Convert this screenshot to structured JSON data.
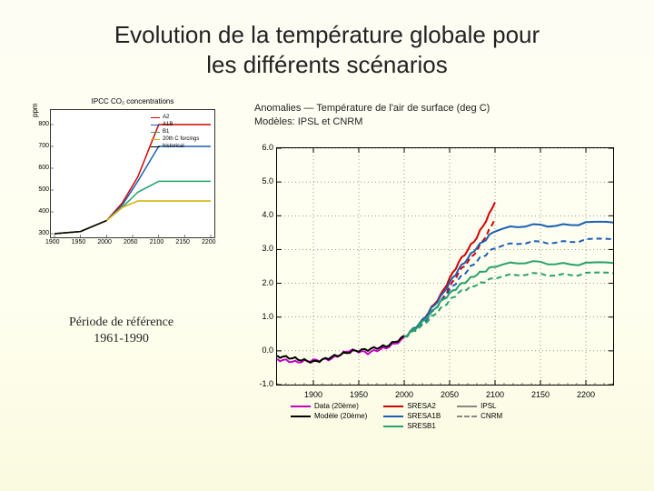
{
  "title_line1": "Evolution de la température globale pour",
  "title_line2": "les différents scénarios",
  "left_chart": {
    "title": "IPCC CO₂ concentrations",
    "ylabel": "ppm",
    "ylim": [
      300,
      850
    ],
    "yticks": [
      300,
      400,
      500,
      600,
      700,
      800
    ],
    "xlim": [
      1900,
      2200
    ],
    "xticks": [
      1900,
      1950,
      2000,
      2050,
      2100,
      2150,
      2200
    ],
    "series": [
      {
        "name": "A2",
        "color": "#d40000",
        "x": [
          1900,
          1950,
          2000,
          2030,
          2060,
          2100,
          2150,
          2200
        ],
        "y": [
          300,
          310,
          360,
          440,
          560,
          800,
          800,
          800
        ]
      },
      {
        "name": "A1B",
        "color": "#1a5fb4",
        "x": [
          1900,
          1950,
          2000,
          2030,
          2060,
          2100,
          2150,
          2200
        ],
        "y": [
          300,
          310,
          360,
          430,
          540,
          700,
          700,
          700
        ]
      },
      {
        "name": "B1",
        "color": "#26a269",
        "x": [
          1900,
          1950,
          2000,
          2030,
          2060,
          2100,
          2150,
          2200
        ],
        "y": [
          300,
          310,
          360,
          420,
          490,
          540,
          540,
          540
        ]
      },
      {
        "name": "20th C forcings",
        "color": "#d4b000",
        "x": [
          1900,
          1950,
          2000,
          2030,
          2060,
          2100,
          2150,
          2200
        ],
        "y": [
          300,
          310,
          360,
          420,
          450,
          450,
          450,
          450
        ]
      },
      {
        "name": "historical",
        "color": "#000000",
        "x": [
          1900,
          1950,
          2000
        ],
        "y": [
          300,
          310,
          360
        ]
      }
    ]
  },
  "reference_label_line1": "Période de référence",
  "reference_label_line2": "1961-1990",
  "main_chart": {
    "title1": "Anomalies — Température de l'air de surface (deg C)",
    "title2": "Modèles: IPSL et CNRM",
    "ylim": [
      -1.0,
      6.0
    ],
    "yticks": [
      -1.0,
      0.0,
      1.0,
      2.0,
      3.0,
      4.0,
      5.0,
      6.0
    ],
    "xlim": [
      1860,
      2230
    ],
    "xticks": [
      1900,
      1950,
      2000,
      2050,
      2100,
      2150,
      2200
    ],
    "legend_cols": [
      [
        {
          "label": "Data (20ème)",
          "color": "#c400c4",
          "dash": "solid"
        },
        {
          "label": "Modèle (20ème)",
          "color": "#000000",
          "dash": "solid"
        }
      ],
      [
        {
          "label": "SRESA2",
          "color": "#d40000",
          "dash": "solid"
        },
        {
          "label": "SRESA1B",
          "color": "#1a5fb4",
          "dash": "solid"
        },
        {
          "label": "SRESB1",
          "color": "#26a269",
          "dash": "solid"
        }
      ],
      [
        {
          "label": "IPSL",
          "color": "#888888",
          "dash": "solid"
        },
        {
          "label": "CNRM",
          "color": "#888888",
          "dash": "dashed"
        }
      ]
    ],
    "series": [
      {
        "id": "data20",
        "color": "#c400c4",
        "dash": "solid",
        "width": 2,
        "x": [
          1860,
          1880,
          1900,
          1920,
          1940,
          1960,
          1980,
          2000
        ],
        "y": [
          -0.3,
          -0.35,
          -0.25,
          -0.2,
          0.0,
          -0.1,
          0.1,
          0.4
        ]
      },
      {
        "id": "model20",
        "color": "#000000",
        "dash": "solid",
        "width": 2,
        "x": [
          1860,
          1880,
          1900,
          1920,
          1940,
          1960,
          1980,
          2000
        ],
        "y": [
          -0.2,
          -0.25,
          -0.3,
          -0.15,
          -0.05,
          0.0,
          0.15,
          0.45
        ]
      },
      {
        "id": "a2_ipsl",
        "color": "#d40000",
        "dash": "solid",
        "width": 2,
        "x": [
          2000,
          2020,
          2040,
          2060,
          2080,
          2100
        ],
        "y": [
          0.45,
          0.9,
          1.6,
          2.6,
          3.4,
          4.4
        ]
      },
      {
        "id": "a2_cnrm",
        "color": "#d40000",
        "dash": "dashed",
        "width": 2,
        "x": [
          2000,
          2020,
          2040,
          2060,
          2080,
          2100
        ],
        "y": [
          0.45,
          0.8,
          1.4,
          2.3,
          3.0,
          3.9
        ]
      },
      {
        "id": "a1b_ipsl",
        "color": "#1a5fb4",
        "dash": "solid",
        "width": 2,
        "x": [
          2000,
          2020,
          2040,
          2060,
          2080,
          2100,
          2150,
          2200,
          2230
        ],
        "y": [
          0.45,
          0.9,
          1.55,
          2.4,
          3.1,
          3.6,
          3.7,
          3.8,
          3.8
        ]
      },
      {
        "id": "a1b_cnrm",
        "color": "#1a5fb4",
        "dash": "dashed",
        "width": 2,
        "x": [
          2000,
          2020,
          2040,
          2060,
          2080,
          2100,
          2150,
          2200,
          2230
        ],
        "y": [
          0.45,
          0.8,
          1.4,
          2.1,
          2.7,
          3.1,
          3.2,
          3.3,
          3.3
        ]
      },
      {
        "id": "b1_ipsl",
        "color": "#26a269",
        "dash": "solid",
        "width": 2,
        "x": [
          2000,
          2020,
          2040,
          2060,
          2080,
          2100,
          2150,
          2200,
          2230
        ],
        "y": [
          0.45,
          0.85,
          1.4,
          1.9,
          2.3,
          2.55,
          2.6,
          2.6,
          2.6
        ]
      },
      {
        "id": "b1_cnrm",
        "color": "#26a269",
        "dash": "dashed",
        "width": 2,
        "x": [
          2000,
          2020,
          2040,
          2060,
          2080,
          2100,
          2150,
          2200,
          2230
        ],
        "y": [
          0.45,
          0.75,
          1.2,
          1.7,
          2.0,
          2.2,
          2.25,
          2.3,
          2.3
        ]
      }
    ]
  }
}
